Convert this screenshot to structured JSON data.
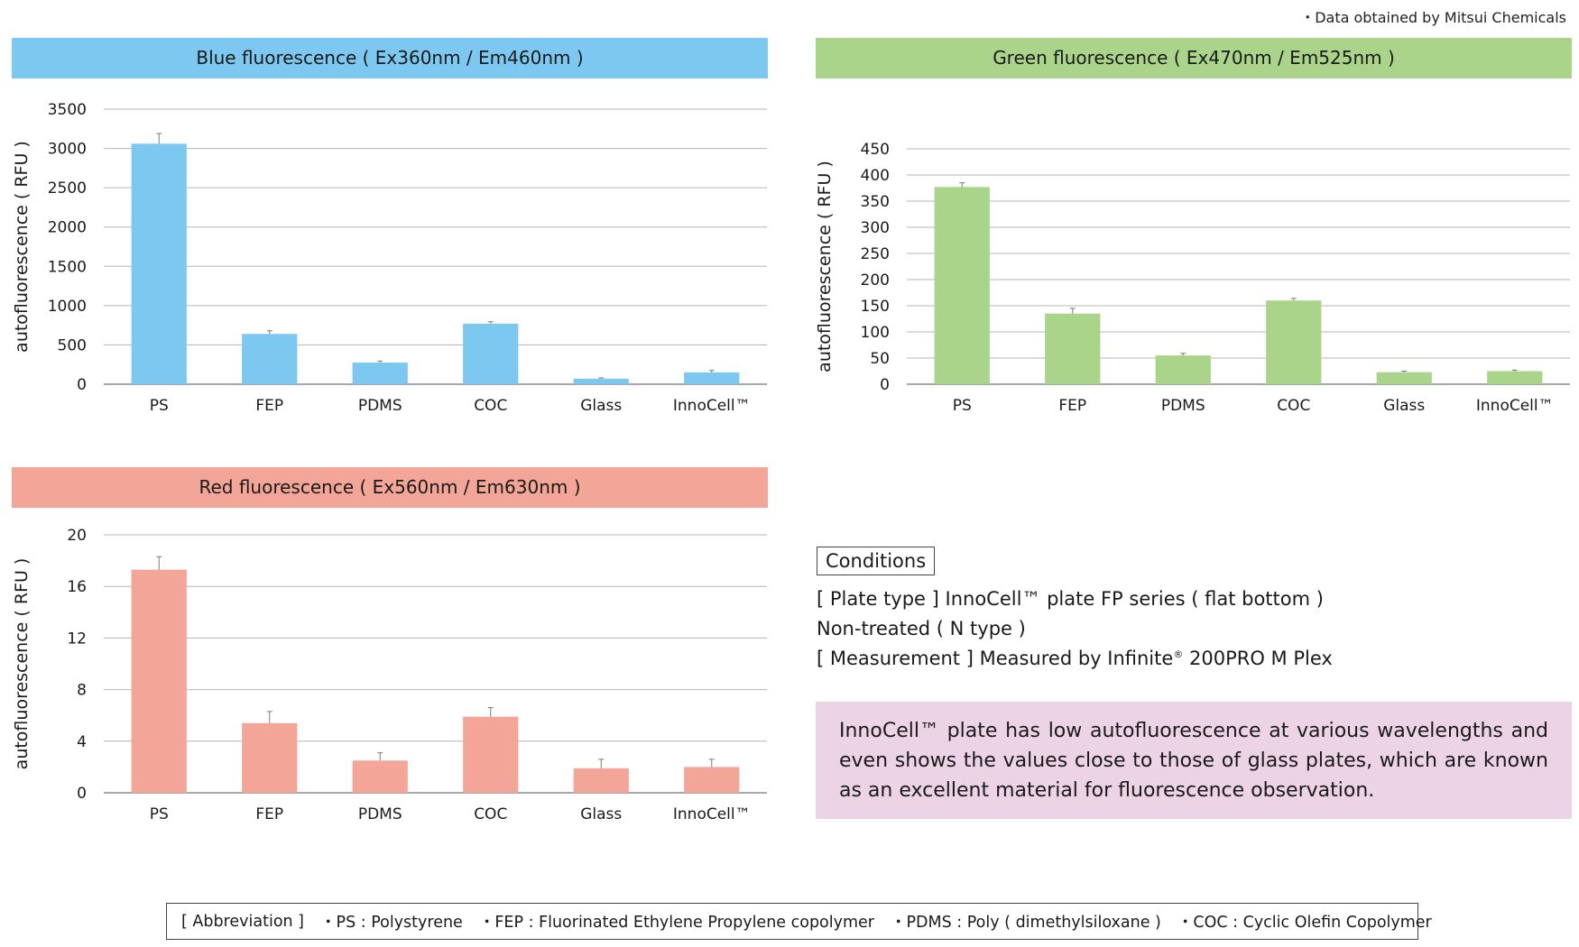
{
  "source_note": "・Data obtained by Mitsui Chemicals",
  "colors": {
    "blue": "#7dc8f1",
    "green": "#a9d48a",
    "red": "#f3a697"
  },
  "chart_data": [
    {
      "type": "bar",
      "title": "Blue fluorescence ( Ex360nm / Em460nm )",
      "ylabel": "autofluorescence ( RFU )",
      "categories": [
        "PS",
        "FEP",
        "PDMS",
        "COC",
        "Glass",
        "InnoCell™"
      ],
      "values": [
        3060,
        640,
        275,
        770,
        70,
        150
      ],
      "errors": [
        130,
        40,
        20,
        25,
        10,
        25
      ],
      "ylim": [
        0,
        3500
      ],
      "yticks": [
        "0",
        "500",
        "1000",
        "1500",
        "2000",
        "2500",
        "3000",
        "3500"
      ],
      "grid": true,
      "color": "#7dc8f1"
    },
    {
      "type": "bar",
      "title": "Green fluorescence ( Ex470nm / Em525nm )",
      "ylabel": "autofluorescence ( RFU )",
      "categories": [
        "PS",
        "FEP",
        "PDMS",
        "COC",
        "Glass",
        "InnoCell™"
      ],
      "values": [
        377,
        135,
        55,
        160,
        23,
        25
      ],
      "errors": [
        8,
        10,
        4,
        4,
        2,
        2
      ],
      "ylim": [
        0,
        450
      ],
      "yticks": [
        "0",
        "50",
        "100",
        "150",
        "200",
        "250",
        "300",
        "350",
        "400",
        "450"
      ],
      "grid": true,
      "color": "#a9d48a"
    },
    {
      "type": "bar",
      "title": "Red fluorescence ( Ex560nm / Em630nm )",
      "ylabel": "autofluorescence ( RFU )",
      "categories": [
        "PS",
        "FEP",
        "PDMS",
        "COC",
        "Glass",
        "InnoCell™"
      ],
      "values": [
        17.3,
        5.4,
        2.5,
        5.9,
        1.9,
        2.0
      ],
      "errors": [
        1.0,
        0.9,
        0.6,
        0.7,
        0.7,
        0.6
      ],
      "ylim": [
        0,
        20
      ],
      "yticks": [
        "0",
        "4",
        "8",
        "12",
        "16",
        "20"
      ],
      "grid": true,
      "color": "#f3a697"
    }
  ],
  "conditions": {
    "title": "Conditions",
    "plate_type": "[ Plate type ]  InnoCell™ plate FP series ( flat bottom )",
    "treatment": "Non-treated ( N type )",
    "measurement_prefix": "[ Measurement ]  Measured by Infinite",
    "measurement_reg": "®",
    "measurement_suffix": " 200PRO M Plex"
  },
  "summary": "InnoCell™ plate has low autofluorescence at various wavelengths and even shows the values close to those of glass plates, which are known as an excellent material for fluorescence observation.",
  "abbreviation": {
    "label": "[ Abbreviation ]",
    "items": [
      "・PS : Polystyrene",
      "・FEP : Fluorinated Ethylene Propylene copolymer",
      "・PDMS : Poly ( dimethylsiloxane )",
      "・COC : Cyclic Olefin Copolymer"
    ]
  }
}
